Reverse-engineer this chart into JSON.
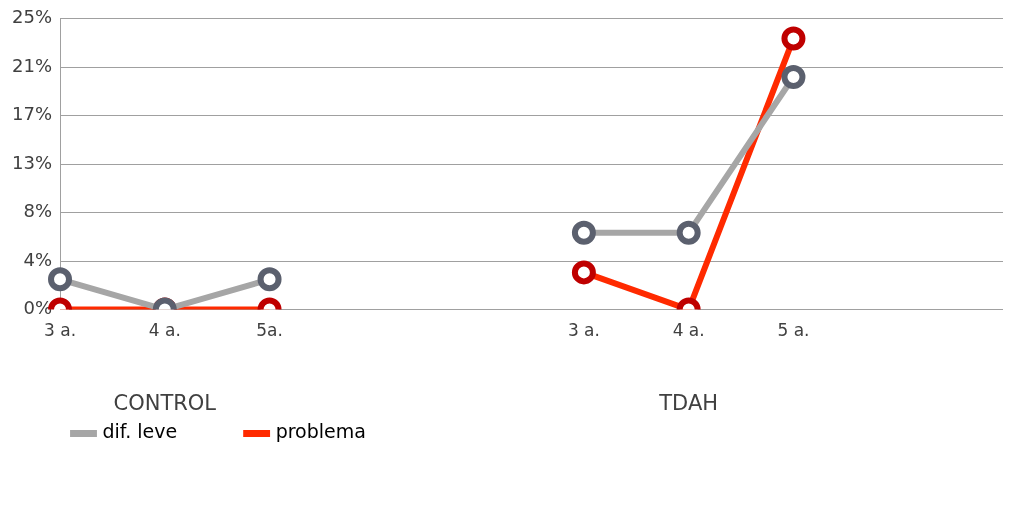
{
  "chart_data": {
    "type": "line",
    "categories": [
      "3 a.",
      "4 a.",
      "5a.",
      null,
      null,
      "3 a.",
      "4 a.",
      "5 a.",
      null,
      null
    ],
    "series": [
      {
        "name": "dif. leve",
        "color": "#a6a6a6",
        "values": [
          2.6,
          0,
          2.6,
          null,
          null,
          6.6,
          6.6,
          20,
          null,
          null
        ]
      },
      {
        "name": "problema",
        "color": "#ff2a00",
        "values": [
          0,
          0,
          0,
          null,
          null,
          3.2,
          0,
          23.3,
          null,
          null
        ]
      }
    ],
    "ylim": [
      0,
      25
    ],
    "yticks": [
      {
        "value": 0,
        "label": "0%"
      },
      {
        "value": 4.1667,
        "label": "4%"
      },
      {
        "value": 8.3333,
        "label": "8%"
      },
      {
        "value": 12.5,
        "label": "13%"
      },
      {
        "value": 16.6667,
        "label": "17%"
      },
      {
        "value": 20.8333,
        "label": "21%"
      },
      {
        "value": 25,
        "label": "25%"
      }
    ],
    "grid": "y",
    "legend": "bottom left",
    "marker": "circle",
    "line_style": "solid",
    "annotations": [
      "CONTROL",
      "TDAH"
    ]
  }
}
